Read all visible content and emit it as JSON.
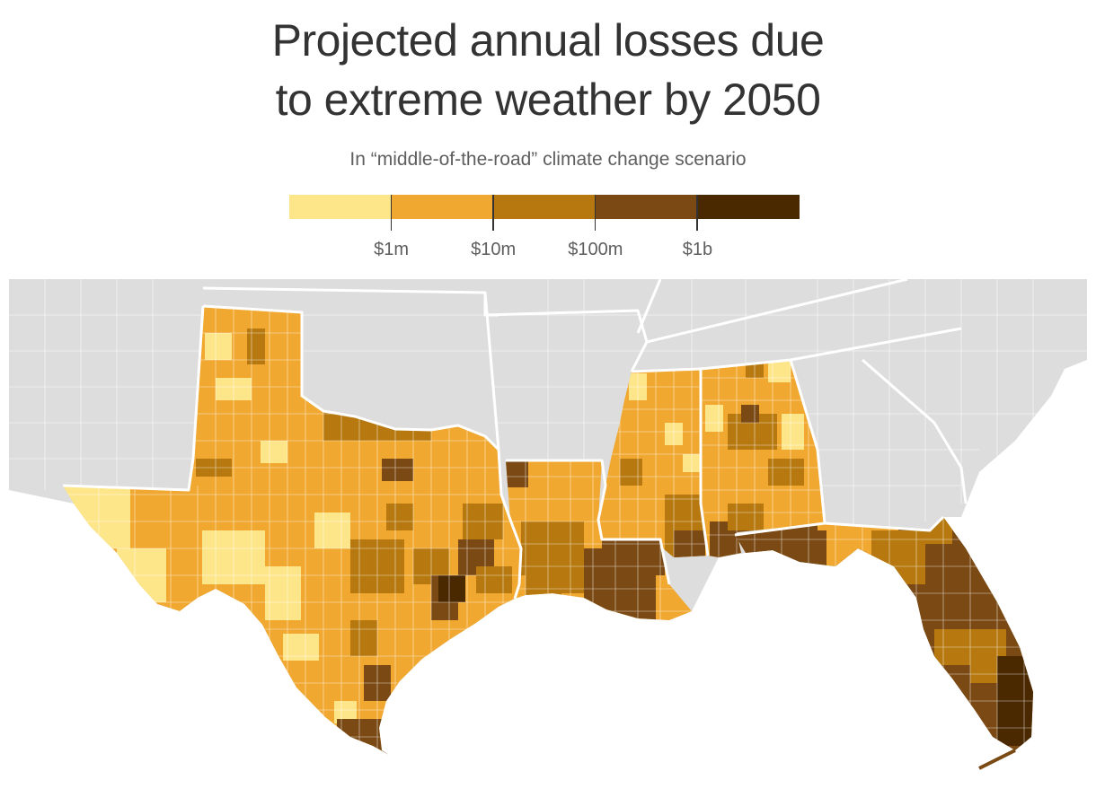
{
  "title": {
    "line1": "Projected annual losses due",
    "line2": "to extreme weather by 2050"
  },
  "subtitle": "In “middle-of-the-road” climate change scenario",
  "legend": {
    "bins": [
      {
        "color": "#fde68a"
      },
      {
        "color": "#f0a830"
      },
      {
        "color": "#b7790f"
      },
      {
        "color": "#7b4a14"
      },
      {
        "color": "#4b2900"
      }
    ],
    "thresholds": [
      {
        "label": "$1m"
      },
      {
        "label": "$10m"
      },
      {
        "label": "$100m"
      },
      {
        "label": "$1b"
      }
    ]
  },
  "map": {
    "background_color": "#dddddd",
    "border_color": "#ffffff",
    "highlighted_states": [
      "Texas",
      "Louisiana",
      "Mississippi",
      "Alabama",
      "Florida"
    ]
  }
}
